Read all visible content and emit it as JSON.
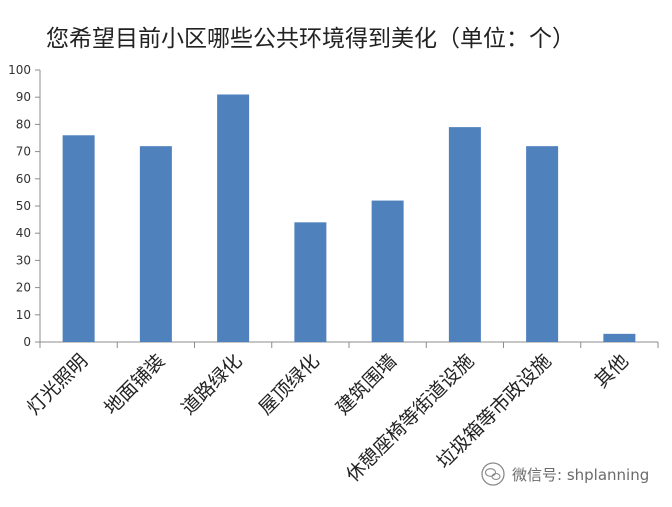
{
  "chart_data": {
    "type": "bar",
    "title": "您希望目前小区哪些公共环境得到美化（单位：个）",
    "categories": [
      "灯光照明",
      "地面铺装",
      "道路绿化",
      "屋顶绿化",
      "建筑围墙",
      "休憩座椅等街道设施",
      "垃圾箱等市政设施",
      "其他"
    ],
    "values": [
      76,
      72,
      91,
      44,
      52,
      79,
      72,
      3
    ],
    "ylim": [
      0,
      100
    ],
    "yticks": [
      0,
      10,
      20,
      30,
      40,
      50,
      60,
      70,
      80,
      90,
      100
    ],
    "xlabel": "",
    "ylabel": "",
    "grid": false,
    "legend": "none",
    "bar_color": "#4f81bd"
  },
  "watermark": {
    "text": "微信号: shplanning",
    "icon": "wechat-icon"
  }
}
